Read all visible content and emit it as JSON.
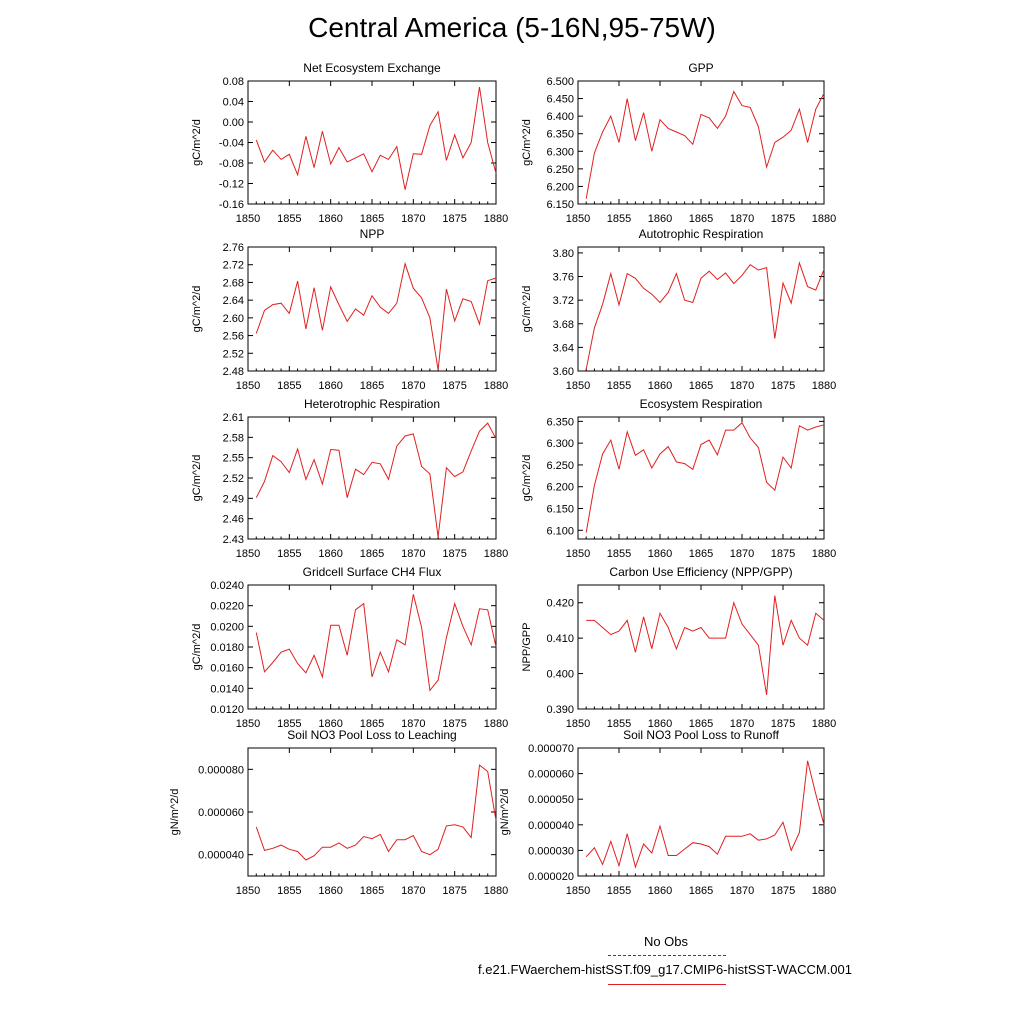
{
  "title": "Central America (5-16N,95-75W)",
  "legend": {
    "obs_label": "No Obs",
    "model_label": "f.e21.FWaerchem-histSST.f09_g17.CMIP6-histSST-WACCM.001",
    "obs_color": "#3333cc",
    "model_color": "#e02020"
  },
  "chart_data": [
    {
      "type": "line",
      "title": "Net Ecosystem Exchange",
      "xlabel": "",
      "ylabel": "gC/m^2/d",
      "xlim": [
        1850,
        1880
      ],
      "ylim": [
        -0.16,
        0.08
      ],
      "xticks": [
        "1850",
        "1855",
        "1860",
        "1865",
        "1870",
        "1875",
        "1880"
      ],
      "yticks": [
        "-0.16",
        "-0.12",
        "-0.08",
        "-0.04",
        "0.00",
        "0.04",
        "0.08"
      ],
      "x": [
        1851,
        1852,
        1853,
        1854,
        1855,
        1856,
        1857,
        1858,
        1859,
        1860,
        1861,
        1862,
        1863,
        1864,
        1865,
        1866,
        1867,
        1868,
        1869,
        1870,
        1871,
        1872,
        1873,
        1874,
        1875,
        1876,
        1877,
        1878,
        1879,
        1880
      ],
      "series": [
        {
          "values": [
            -0.035,
            -0.078,
            -0.055,
            -0.073,
            -0.063,
            -0.103,
            -0.028,
            -0.089,
            -0.018,
            -0.082,
            -0.05,
            -0.078,
            -0.07,
            -0.062,
            -0.097,
            -0.065,
            -0.073,
            -0.048,
            -0.132,
            -0.062,
            -0.063,
            -0.007,
            0.02,
            -0.075,
            -0.025,
            -0.07,
            -0.04,
            0.068,
            -0.04,
            -0.1
          ]
        }
      ]
    },
    {
      "type": "line",
      "title": "GPP",
      "xlabel": "",
      "ylabel": "gC/m^2/d",
      "xlim": [
        1850,
        1880
      ],
      "ylim": [
        6.15,
        6.5
      ],
      "xticks": [
        "1850",
        "1855",
        "1860",
        "1865",
        "1870",
        "1875",
        "1880"
      ],
      "yticks": [
        "6.150",
        "6.200",
        "6.250",
        "6.300",
        "6.350",
        "6.400",
        "6.450",
        "6.500"
      ],
      "x": [
        1851,
        1852,
        1853,
        1854,
        1855,
        1856,
        1857,
        1858,
        1859,
        1860,
        1861,
        1862,
        1863,
        1864,
        1865,
        1866,
        1867,
        1868,
        1869,
        1870,
        1871,
        1872,
        1873,
        1874,
        1875,
        1876,
        1877,
        1878,
        1879,
        1880
      ],
      "series": [
        {
          "values": [
            6.165,
            6.295,
            6.355,
            6.4,
            6.325,
            6.45,
            6.33,
            6.41,
            6.3,
            6.39,
            6.365,
            6.355,
            6.345,
            6.32,
            6.405,
            6.395,
            6.365,
            6.4,
            6.47,
            6.43,
            6.425,
            6.37,
            6.255,
            6.325,
            6.34,
            6.36,
            6.42,
            6.325,
            6.42,
            6.465
          ]
        }
      ]
    },
    {
      "type": "line",
      "title": "NPP",
      "xlabel": "",
      "ylabel": "gC/m^2/d",
      "xlim": [
        1850,
        1880
      ],
      "ylim": [
        2.48,
        2.76
      ],
      "xticks": [
        "1850",
        "1855",
        "1860",
        "1865",
        "1870",
        "1875",
        "1880"
      ],
      "yticks": [
        "2.48",
        "2.52",
        "2.56",
        "2.60",
        "2.64",
        "2.68",
        "2.72",
        "2.76"
      ],
      "x": [
        1851,
        1852,
        1853,
        1854,
        1855,
        1856,
        1857,
        1858,
        1859,
        1860,
        1861,
        1862,
        1863,
        1864,
        1865,
        1866,
        1867,
        1868,
        1869,
        1870,
        1871,
        1872,
        1873,
        1874,
        1875,
        1876,
        1877,
        1878,
        1879,
        1880
      ],
      "series": [
        {
          "values": [
            2.565,
            2.617,
            2.63,
            2.633,
            2.61,
            2.683,
            2.575,
            2.668,
            2.572,
            2.67,
            2.63,
            2.592,
            2.62,
            2.606,
            2.65,
            2.624,
            2.61,
            2.633,
            2.722,
            2.667,
            2.645,
            2.6,
            2.482,
            2.665,
            2.593,
            2.643,
            2.637,
            2.586,
            2.684,
            2.69
          ]
        }
      ]
    },
    {
      "type": "line",
      "title": "Autotrophic Respiration",
      "xlabel": "",
      "ylabel": "gC/m^2/d",
      "xlim": [
        1850,
        1880
      ],
      "ylim": [
        3.6,
        3.81
      ],
      "xticks": [
        "1850",
        "1855",
        "1860",
        "1865",
        "1870",
        "1875",
        "1880"
      ],
      "yticks": [
        "3.60",
        "3.64",
        "3.68",
        "3.72",
        "3.76",
        "3.80"
      ],
      "x": [
        1851,
        1852,
        1853,
        1854,
        1855,
        1856,
        1857,
        1858,
        1859,
        1860,
        1861,
        1862,
        1863,
        1864,
        1865,
        1866,
        1867,
        1868,
        1869,
        1870,
        1871,
        1872,
        1873,
        1874,
        1875,
        1876,
        1877,
        1878,
        1879,
        1880
      ],
      "series": [
        {
          "values": [
            3.603,
            3.673,
            3.713,
            3.765,
            3.712,
            3.765,
            3.757,
            3.74,
            3.73,
            3.716,
            3.733,
            3.765,
            3.72,
            3.716,
            3.757,
            3.769,
            3.755,
            3.766,
            3.748,
            3.762,
            3.78,
            3.771,
            3.775,
            3.655,
            3.749,
            3.715,
            3.783,
            3.743,
            3.737,
            3.772
          ]
        }
      ]
    },
    {
      "type": "line",
      "title": "Heterotrophic Respiration",
      "xlabel": "",
      "ylabel": "gC/m^2/d",
      "xlim": [
        1850,
        1880
      ],
      "ylim": [
        2.43,
        2.61
      ],
      "xticks": [
        "1850",
        "1855",
        "1860",
        "1865",
        "1870",
        "1875",
        "1880"
      ],
      "yticks": [
        "2.43",
        "2.46",
        "2.49",
        "2.52",
        "2.55",
        "2.58",
        "2.61"
      ],
      "x": [
        1851,
        1852,
        1853,
        1854,
        1855,
        1856,
        1857,
        1858,
        1859,
        1860,
        1861,
        1862,
        1863,
        1864,
        1865,
        1866,
        1867,
        1868,
        1869,
        1870,
        1871,
        1872,
        1873,
        1874,
        1875,
        1876,
        1877,
        1878,
        1879,
        1880
      ],
      "series": [
        {
          "values": [
            2.491,
            2.515,
            2.553,
            2.544,
            2.528,
            2.563,
            2.518,
            2.547,
            2.511,
            2.562,
            2.561,
            2.491,
            2.533,
            2.525,
            2.543,
            2.541,
            2.518,
            2.567,
            2.582,
            2.585,
            2.537,
            2.526,
            2.433,
            2.535,
            2.522,
            2.529,
            2.56,
            2.589,
            2.601,
            2.578
          ]
        }
      ]
    },
    {
      "type": "line",
      "title": "Ecosystem Respiration",
      "xlabel": "",
      "ylabel": "gC/m^2/d",
      "xlim": [
        1850,
        1880
      ],
      "ylim": [
        6.08,
        6.36
      ],
      "xticks": [
        "1850",
        "1855",
        "1860",
        "1865",
        "1870",
        "1875",
        "1880"
      ],
      "yticks": [
        "6.100",
        "6.150",
        "6.200",
        "6.250",
        "6.300",
        "6.350"
      ],
      "x": [
        1851,
        1852,
        1853,
        1854,
        1855,
        1856,
        1857,
        1858,
        1859,
        1860,
        1861,
        1862,
        1863,
        1864,
        1865,
        1866,
        1867,
        1868,
        1869,
        1870,
        1871,
        1872,
        1873,
        1874,
        1875,
        1876,
        1877,
        1878,
        1879,
        1880
      ],
      "series": [
        {
          "values": [
            6.095,
            6.203,
            6.275,
            6.307,
            6.24,
            6.326,
            6.272,
            6.285,
            6.243,
            6.275,
            6.292,
            6.257,
            6.253,
            6.24,
            6.297,
            6.307,
            6.273,
            6.33,
            6.33,
            6.347,
            6.312,
            6.29,
            6.21,
            6.192,
            6.268,
            6.243,
            6.34,
            6.33,
            6.337,
            6.342
          ]
        }
      ]
    },
    {
      "type": "line",
      "title": "Gridcell Surface CH4 Flux",
      "xlabel": "",
      "ylabel": "gC/m^2/d",
      "xlim": [
        1850,
        1880
      ],
      "ylim": [
        0.012,
        0.024
      ],
      "xticks": [
        "1850",
        "1855",
        "1860",
        "1865",
        "1870",
        "1875",
        "1880"
      ],
      "yticks": [
        "0.0120",
        "0.0140",
        "0.0160",
        "0.0180",
        "0.0200",
        "0.0220",
        "0.0240"
      ],
      "x": [
        1851,
        1852,
        1853,
        1854,
        1855,
        1856,
        1857,
        1858,
        1859,
        1860,
        1861,
        1862,
        1863,
        1864,
        1865,
        1866,
        1867,
        1868,
        1869,
        1870,
        1871,
        1872,
        1873,
        1874,
        1875,
        1876,
        1877,
        1878,
        1879,
        1880
      ],
      "series": [
        {
          "values": [
            0.0194,
            0.0156,
            0.0165,
            0.0175,
            0.0178,
            0.0164,
            0.0155,
            0.0172,
            0.0151,
            0.0201,
            0.0201,
            0.0172,
            0.0216,
            0.0222,
            0.0151,
            0.0175,
            0.0156,
            0.0187,
            0.0182,
            0.0231,
            0.0199,
            0.0138,
            0.0148,
            0.0189,
            0.0222,
            0.02,
            0.0182,
            0.0217,
            0.0216,
            0.018
          ]
        }
      ]
    },
    {
      "type": "line",
      "title": "Carbon Use Efficiency (NPP/GPP)",
      "xlabel": "",
      "ylabel": "NPP/GPP",
      "xlim": [
        1850,
        1880
      ],
      "ylim": [
        0.39,
        0.425
      ],
      "xticks": [
        "1850",
        "1855",
        "1860",
        "1865",
        "1870",
        "1875",
        "1880"
      ],
      "yticks": [
        "0.390",
        "0.400",
        "0.410",
        "0.420"
      ],
      "x": [
        1851,
        1852,
        1853,
        1854,
        1855,
        1856,
        1857,
        1858,
        1859,
        1860,
        1861,
        1862,
        1863,
        1864,
        1865,
        1866,
        1867,
        1868,
        1869,
        1870,
        1871,
        1872,
        1873,
        1874,
        1875,
        1876,
        1877,
        1878,
        1879,
        1880
      ],
      "series": [
        {
          "values": [
            0.415,
            0.415,
            0.413,
            0.411,
            0.412,
            0.415,
            0.406,
            0.416,
            0.407,
            0.417,
            0.413,
            0.407,
            0.413,
            0.412,
            0.413,
            0.41,
            0.41,
            0.41,
            0.42,
            0.414,
            0.411,
            0.408,
            0.394,
            0.422,
            0.408,
            0.415,
            0.41,
            0.408,
            0.417,
            0.415
          ]
        }
      ]
    },
    {
      "type": "line",
      "title": "Soil NO3 Pool Loss to Leaching",
      "xlabel": "",
      "ylabel": "gN/m^2/d",
      "xlim": [
        1850,
        1880
      ],
      "ylim": [
        3e-05,
        9e-05
      ],
      "xticks": [
        "1850",
        "1855",
        "1860",
        "1865",
        "1870",
        "1875",
        "1880"
      ],
      "yticks": [
        "0.000040",
        "0.000060",
        "0.000080"
      ],
      "x": [
        1851,
        1852,
        1853,
        1854,
        1855,
        1856,
        1857,
        1858,
        1859,
        1860,
        1861,
        1862,
        1863,
        1864,
        1865,
        1866,
        1867,
        1868,
        1869,
        1870,
        1871,
        1872,
        1873,
        1874,
        1875,
        1876,
        1877,
        1878,
        1879,
        1880
      ],
      "series": [
        {
          "values": [
            5.3e-05,
            4.2e-05,
            4.3e-05,
            4.45e-05,
            4.25e-05,
            4.15e-05,
            3.75e-05,
            3.95e-05,
            4.35e-05,
            4.35e-05,
            4.55e-05,
            4.3e-05,
            4.45e-05,
            4.85e-05,
            4.75e-05,
            4.95e-05,
            4.15e-05,
            4.7e-05,
            4.7e-05,
            4.9e-05,
            4.15e-05,
            4e-05,
            4.25e-05,
            5.35e-05,
            5.4e-05,
            5.3e-05,
            4.8e-05,
            8.2e-05,
            7.9e-05,
            5.6e-05
          ]
        }
      ]
    },
    {
      "type": "line",
      "title": "Soil NO3 Pool Loss to Runoff",
      "xlabel": "",
      "ylabel": "gN/m^2/d",
      "xlim": [
        1850,
        1880
      ],
      "ylim": [
        2e-05,
        7e-05
      ],
      "xticks": [
        "1850",
        "1855",
        "1860",
        "1865",
        "1870",
        "1875",
        "1880"
      ],
      "yticks": [
        "0.000020",
        "0.000030",
        "0.000040",
        "0.000050",
        "0.000060",
        "0.000070"
      ],
      "x": [
        1851,
        1852,
        1853,
        1854,
        1855,
        1856,
        1857,
        1858,
        1859,
        1860,
        1861,
        1862,
        1863,
        1864,
        1865,
        1866,
        1867,
        1868,
        1869,
        1870,
        1871,
        1872,
        1873,
        1874,
        1875,
        1876,
        1877,
        1878,
        1879,
        1880
      ],
      "series": [
        {
          "values": [
            2.75e-05,
            3.1e-05,
            2.45e-05,
            3.35e-05,
            2.4e-05,
            3.65e-05,
            2.35e-05,
            3.25e-05,
            2.9e-05,
            3.95e-05,
            2.8e-05,
            2.8e-05,
            3.05e-05,
            3.3e-05,
            3.25e-05,
            3.15e-05,
            2.85e-05,
            3.55e-05,
            3.55e-05,
            3.55e-05,
            3.65e-05,
            3.4e-05,
            3.45e-05,
            3.6e-05,
            4.1e-05,
            3e-05,
            3.7e-05,
            6.5e-05,
            5.2e-05,
            4e-05
          ]
        }
      ]
    }
  ]
}
